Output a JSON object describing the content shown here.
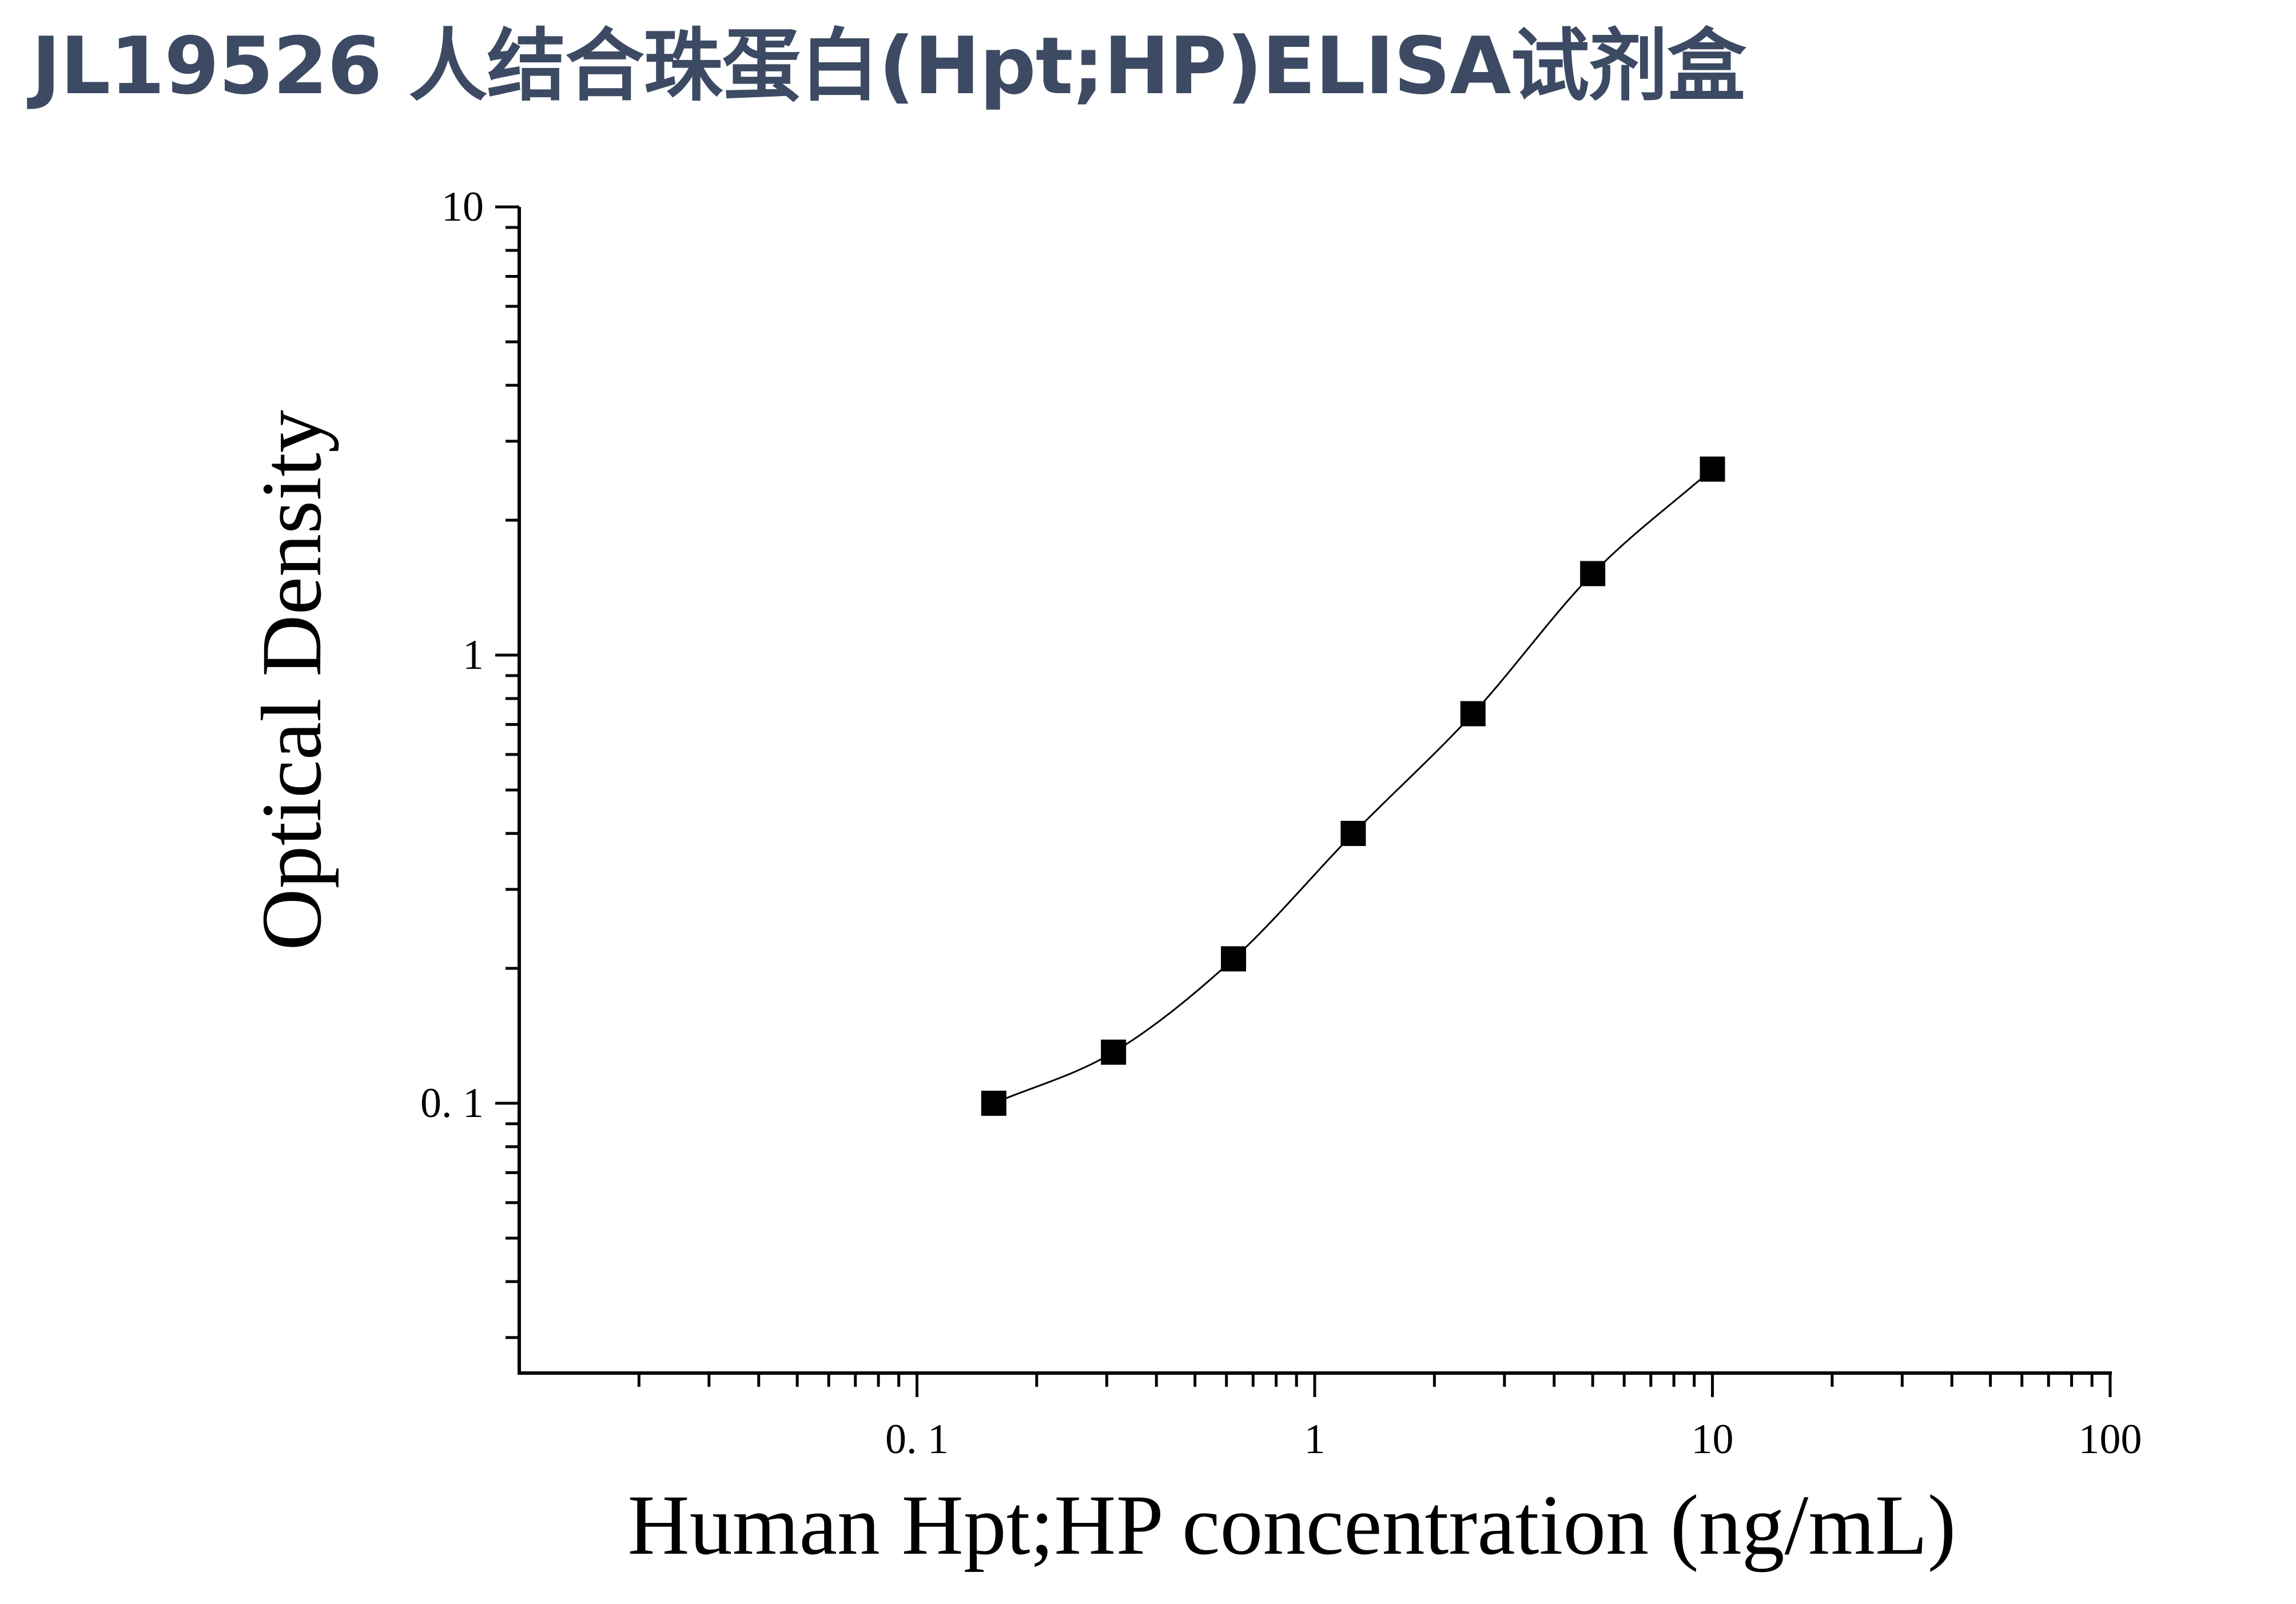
{
  "title": "JL19526 人结合珠蛋白(Hpt;HP)ELISA试剂盒",
  "chart_data": {
    "type": "scatter",
    "title": "",
    "xlabel": "Human Hpt;HP concentration (ng/mL)",
    "ylabel": "Optical Density",
    "x_scale": "log",
    "y_scale": "log",
    "xlim": [
      0.01,
      100
    ],
    "ylim": [
      0.025,
      10
    ],
    "x_ticks": [
      {
        "value": 0.1,
        "label": "0. 1"
      },
      {
        "value": 1,
        "label": "1"
      },
      {
        "value": 10,
        "label": "10"
      },
      {
        "value": 100,
        "label": "100"
      }
    ],
    "y_ticks": [
      {
        "value": 0.1,
        "label": "0. 1"
      },
      {
        "value": 1,
        "label": "1"
      },
      {
        "value": 10,
        "label": "10"
      }
    ],
    "grid": false,
    "legend": "none",
    "series": [
      {
        "marker": "square",
        "color": "#000000",
        "fit_line": true,
        "x": [
          0.156,
          0.312,
          0.625,
          1.25,
          2.5,
          5,
          10
        ],
        "y": [
          0.1,
          0.13,
          0.21,
          0.4,
          0.74,
          1.52,
          2.6
        ]
      }
    ]
  }
}
